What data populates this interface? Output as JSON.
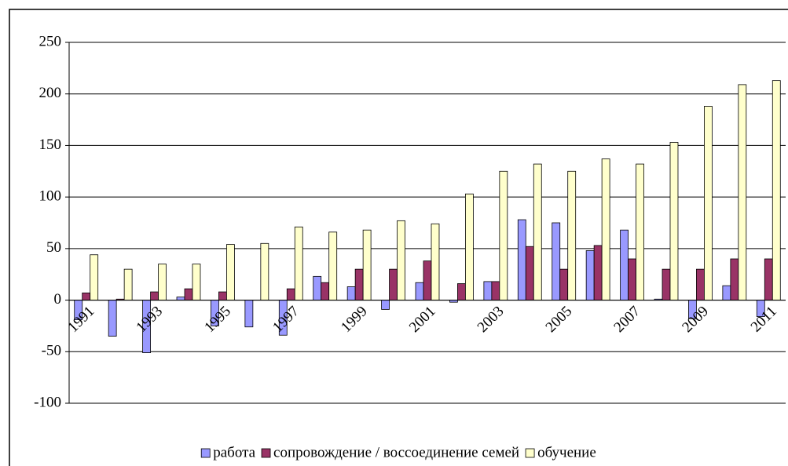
{
  "chart_data": {
    "type": "bar",
    "categories": [
      "1991",
      null,
      "1993",
      null,
      "1995",
      null,
      "1997",
      null,
      "1999",
      null,
      "2001",
      null,
      "2003",
      null,
      "2005",
      null,
      "2007",
      null,
      "2009",
      null,
      "2011"
    ],
    "series": [
      {
        "name": "работа",
        "color": "#9999ff",
        "values": [
          -19,
          -35,
          -51,
          3,
          -25,
          -26,
          -34,
          23,
          13,
          -9,
          17,
          -2,
          18,
          78,
          75,
          48,
          68,
          1,
          -18,
          14,
          -16
        ]
      },
      {
        "name": "сопровождение / воссоединение семей",
        "color": "#993366",
        "values": [
          7,
          1,
          8,
          11,
          8,
          0,
          11,
          17,
          30,
          30,
          38,
          16,
          18,
          52,
          30,
          53,
          40,
          30,
          30,
          40,
          40
        ]
      },
      {
        "name": "обучение",
        "color": "#ffffcc",
        "values": [
          44,
          30,
          35,
          35,
          54,
          55,
          71,
          66,
          68,
          77,
          74,
          103,
          125,
          132,
          125,
          137,
          132,
          153,
          188,
          209,
          213
        ]
      }
    ],
    "ylim": [
      -100,
      250
    ],
    "yticks": [
      -100,
      -50,
      0,
      50,
      100,
      150,
      200,
      250
    ],
    "grid": true,
    "legend": "bottom"
  }
}
